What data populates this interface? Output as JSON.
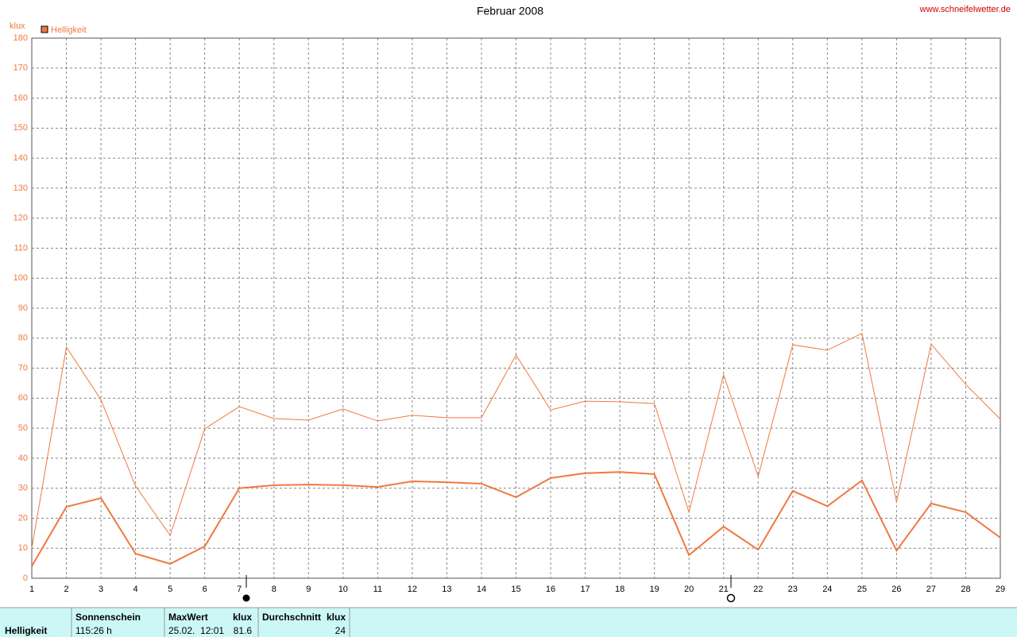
{
  "chart_data": {
    "type": "line",
    "title": "Februar 2008",
    "source": "www.schneifelwetter.de",
    "y_label": "klux",
    "x": [
      1,
      2,
      3,
      4,
      5,
      6,
      7,
      8,
      9,
      10,
      11,
      12,
      13,
      14,
      15,
      16,
      17,
      18,
      19,
      20,
      21,
      22,
      23,
      24,
      25,
      26,
      27,
      28,
      29
    ],
    "series": [
      {
        "name": "Helligkeit",
        "color": "#f07840",
        "width": 2,
        "values": [
          4,
          23.8,
          26.7,
          8.2,
          4.8,
          10.6,
          30,
          31,
          31.2,
          31,
          30.4,
          32.3,
          32,
          31.5,
          27,
          33.4,
          35,
          35.4,
          34.7,
          7.7,
          17.2,
          9.5,
          29.1,
          24,
          32.6,
          9.2,
          24.9,
          22,
          13.5
        ]
      },
      {
        "color": "#f07840",
        "width": 1,
        "values": [
          10,
          77,
          59.5,
          30.7,
          14.3,
          49.8,
          57.2,
          53.2,
          52.7,
          56.4,
          52.4,
          54.3,
          53.5,
          53.5,
          74.4,
          56.1,
          59,
          58.8,
          58.2,
          22,
          67.8,
          33.9,
          77.8,
          76,
          81.6,
          25.4,
          78,
          64.6,
          53
        ]
      }
    ],
    "xlim": [
      1,
      29
    ],
    "xticks": [
      1,
      2,
      3,
      4,
      5,
      6,
      7,
      8,
      9,
      10,
      11,
      12,
      13,
      14,
      15,
      16,
      17,
      18,
      19,
      20,
      21,
      22,
      23,
      24,
      25,
      26,
      27,
      28,
      29
    ],
    "ylim": [
      0,
      180
    ],
    "yticks": [
      0,
      10,
      20,
      30,
      40,
      50,
      60,
      70,
      80,
      90,
      100,
      110,
      120,
      130,
      140,
      150,
      160,
      170,
      180
    ],
    "grid": true
  },
  "table": {
    "row_label": "Helligkeit",
    "sunshine_header": "Sonnenschein",
    "sunshine": "115:26 h",
    "max_header": "MaxWert",
    "max_unit": "klux",
    "max_time": "25.02.  12:01",
    "max_value": 81.6,
    "avg_header": "Durchschnitt",
    "avg_unit": "klux",
    "avg_value": 24
  }
}
